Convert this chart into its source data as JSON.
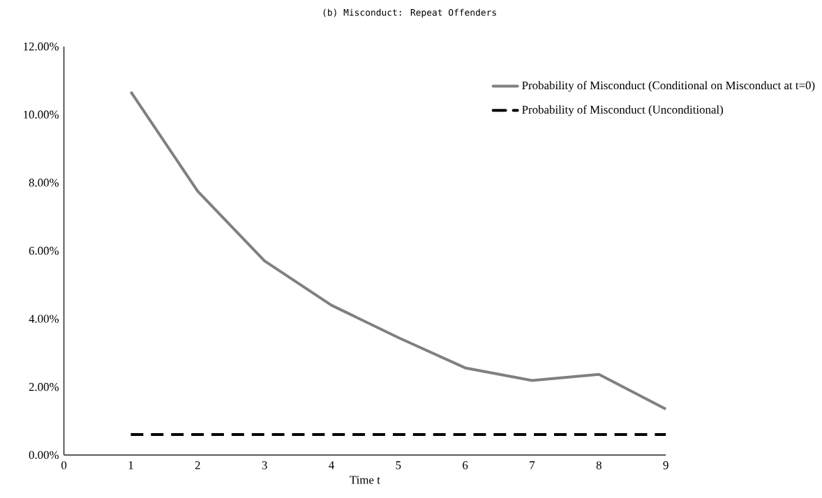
{
  "chart_data": {
    "type": "line",
    "title": "(b) Misconduct: Repeat Offenders",
    "xlabel": "Time t",
    "x": [
      1,
      2,
      3,
      4,
      5,
      6,
      7,
      8,
      9
    ],
    "series": [
      {
        "name": "Probability of Misconduct (Conditional on Misconduct at t=0)",
        "color": "#808080",
        "line_style": "solid",
        "values": [
          10.67,
          7.75,
          5.7,
          4.4,
          3.45,
          2.56,
          2.19,
          2.37,
          1.35
        ]
      },
      {
        "name": "Probability of Misconduct (Unconditional)",
        "color": "#000000",
        "line_style": "dashed",
        "values": [
          0.6,
          0.6,
          0.6,
          0.6,
          0.6,
          0.6,
          0.6,
          0.6,
          0.6
        ]
      }
    ],
    "xlim": [
      0,
      9
    ],
    "xticks": [
      0,
      1,
      2,
      3,
      4,
      5,
      6,
      7,
      8,
      9
    ],
    "ylim": [
      0,
      12
    ],
    "yticks": [
      {
        "value": 0,
        "label": "0.00%"
      },
      {
        "value": 2,
        "label": "2.00%"
      },
      {
        "value": 4,
        "label": "4.00%"
      },
      {
        "value": 6,
        "label": "6.00%"
      },
      {
        "value": 8,
        "label": "8.00%"
      },
      {
        "value": 10,
        "label": "10.00%"
      },
      {
        "value": 12,
        "label": "12.00%"
      }
    ],
    "legend": "top right",
    "grid": false,
    "marker": "none"
  }
}
